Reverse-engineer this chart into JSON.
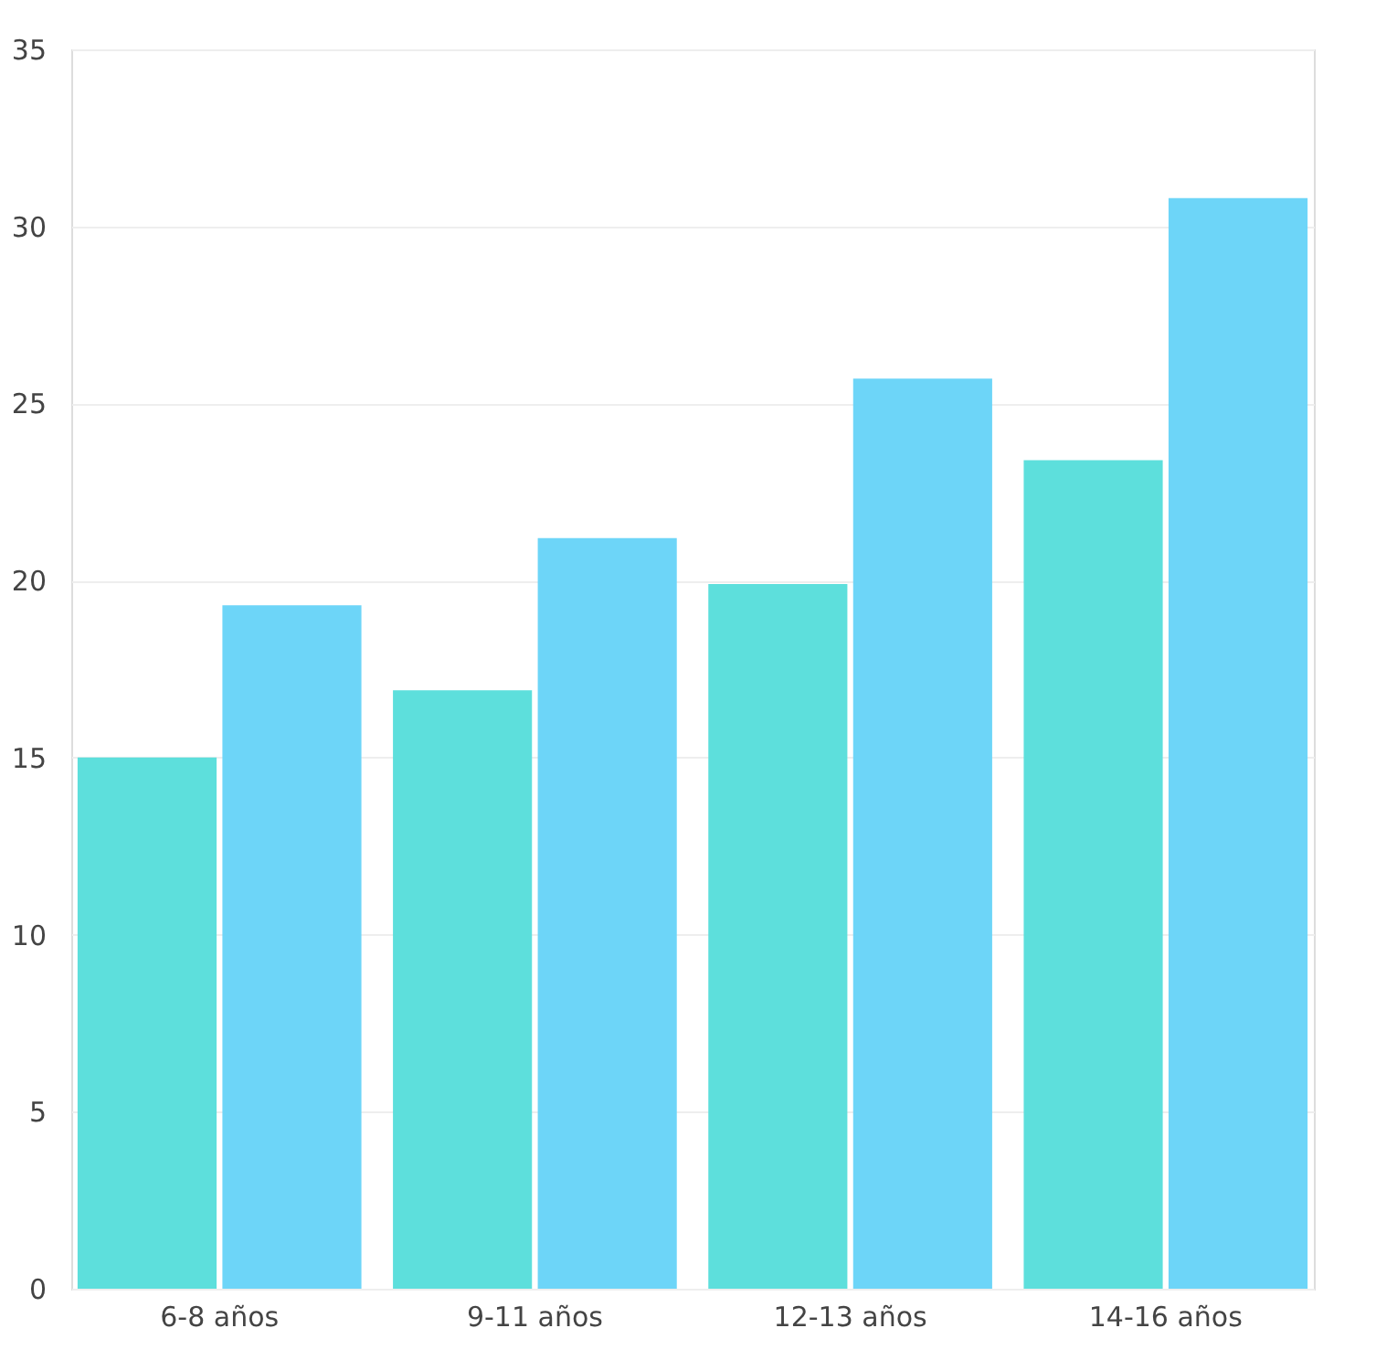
{
  "chart_data": {
    "type": "bar",
    "categories": [
      "6-8 años",
      "9-11 años",
      "12-13 años",
      "14-16 años"
    ],
    "series": [
      {
        "color": "#5ddfdc",
        "values": [
          15,
          16.9,
          19.9,
          23.4
        ]
      },
      {
        "color": "#6dd5f8",
        "values": [
          19.3,
          21.2,
          25.7,
          30.8
        ]
      }
    ],
    "ylim": [
      0,
      35
    ],
    "yticks": [
      0,
      5,
      10,
      15,
      20,
      25,
      30,
      35
    ],
    "grid": "y",
    "legend": false
  }
}
